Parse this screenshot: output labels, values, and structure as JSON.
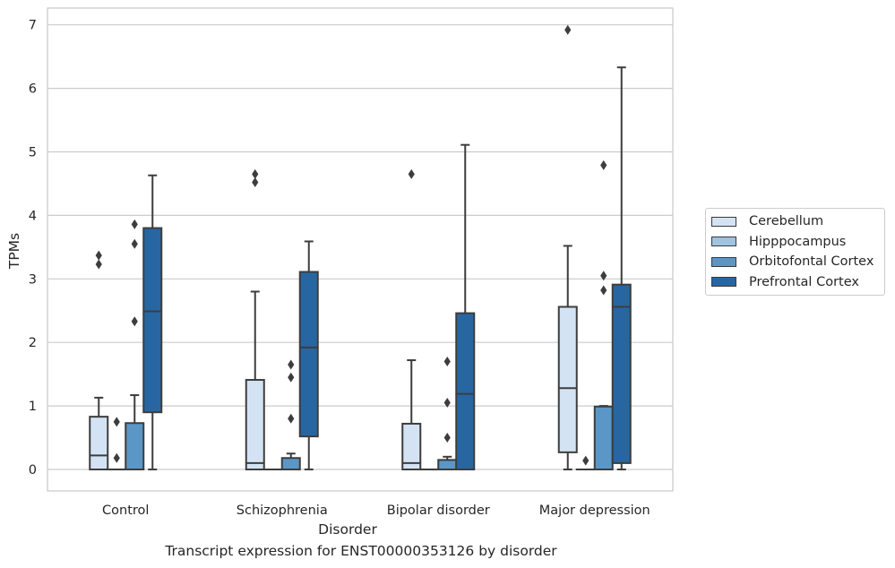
{
  "chart_data": {
    "type": "box",
    "xlabel": "Disorder",
    "ylabel": "TPMs",
    "caption": "Transcript expression for ENST00000353126 by disorder",
    "categories": [
      "Control",
      "Schizophrenia",
      "Bipolar disorder",
      "Major depression"
    ],
    "yticks": [
      0,
      1,
      2,
      3,
      4,
      5,
      6,
      7
    ],
    "ylim": [
      -0.33,
      7.3
    ],
    "grid": "horizontal",
    "legend_position": "right",
    "series": [
      {
        "name": "Cerebellum",
        "color": "#d4e3f4",
        "boxes": [
          {
            "q1": 0,
            "median": 0.22,
            "q3": 0.83,
            "whisker_low": 0,
            "whisker_high": 1.13,
            "outliers": [
              3.23,
              3.37
            ]
          },
          {
            "q1": 0,
            "median": 0.1,
            "q3": 1.41,
            "whisker_low": 0,
            "whisker_high": 2.8,
            "outliers": [
              4.52,
              4.65
            ]
          },
          {
            "q1": 0,
            "median": 0.1,
            "q3": 0.72,
            "whisker_low": 0,
            "whisker_high": 1.72,
            "outliers": [
              4.65
            ]
          },
          {
            "q1": 0.27,
            "median": 1.28,
            "q3": 2.56,
            "whisker_low": 0,
            "whisker_high": 3.52,
            "outliers": [
              6.92
            ]
          }
        ]
      },
      {
        "name": "Hipppocampus",
        "color": "#a0c4e0",
        "boxes": [
          {
            "q1": 0,
            "median": 0,
            "q3": 0,
            "whisker_low": 0,
            "whisker_high": 0,
            "outliers": [
              0.18,
              0.75
            ]
          },
          {
            "q1": 0,
            "median": 0,
            "q3": 0,
            "whisker_low": 0,
            "whisker_high": 0,
            "outliers": []
          },
          {
            "q1": 0,
            "median": 0,
            "q3": 0,
            "whisker_low": 0,
            "whisker_high": 0,
            "outliers": []
          },
          {
            "q1": 0,
            "median": 0,
            "q3": 0,
            "whisker_low": 0,
            "whisker_high": 0,
            "outliers": [
              0.14
            ]
          }
        ]
      },
      {
        "name": "Orbitofontal Cortex",
        "color": "#5a97c6",
        "boxes": [
          {
            "q1": 0,
            "median": 0,
            "q3": 0.73,
            "whisker_low": 0,
            "whisker_high": 1.17,
            "outliers": [
              2.33,
              3.55,
              3.86
            ]
          },
          {
            "q1": 0,
            "median": 0,
            "q3": 0.18,
            "whisker_low": 0,
            "whisker_high": 0.25,
            "outliers": [
              0.8,
              1.45,
              1.65
            ]
          },
          {
            "q1": 0,
            "median": 0,
            "q3": 0.15,
            "whisker_low": 0,
            "whisker_high": 0.2,
            "outliers": [
              0.5,
              1.05,
              1.7
            ]
          },
          {
            "q1": 0,
            "median": 0,
            "q3": 0.99,
            "whisker_low": 0,
            "whisker_high": 1,
            "outliers": [
              2.82,
              3.05,
              4.79
            ]
          }
        ]
      },
      {
        "name": "Prefrontal Cortex",
        "color": "#2866a2",
        "boxes": [
          {
            "q1": 0.9,
            "median": 2.49,
            "q3": 3.8,
            "whisker_low": 0,
            "whisker_high": 4.63,
            "outliers": []
          },
          {
            "q1": 0.52,
            "median": 1.92,
            "q3": 3.11,
            "whisker_low": 0,
            "whisker_high": 3.59,
            "outliers": []
          },
          {
            "q1": 0,
            "median": 1.19,
            "q3": 2.46,
            "whisker_low": 0,
            "whisker_high": 5.11,
            "outliers": []
          },
          {
            "q1": 0.1,
            "median": 2.56,
            "q3": 2.91,
            "whisker_low": 0,
            "whisker_high": 6.33,
            "outliers": []
          }
        ]
      }
    ]
  }
}
